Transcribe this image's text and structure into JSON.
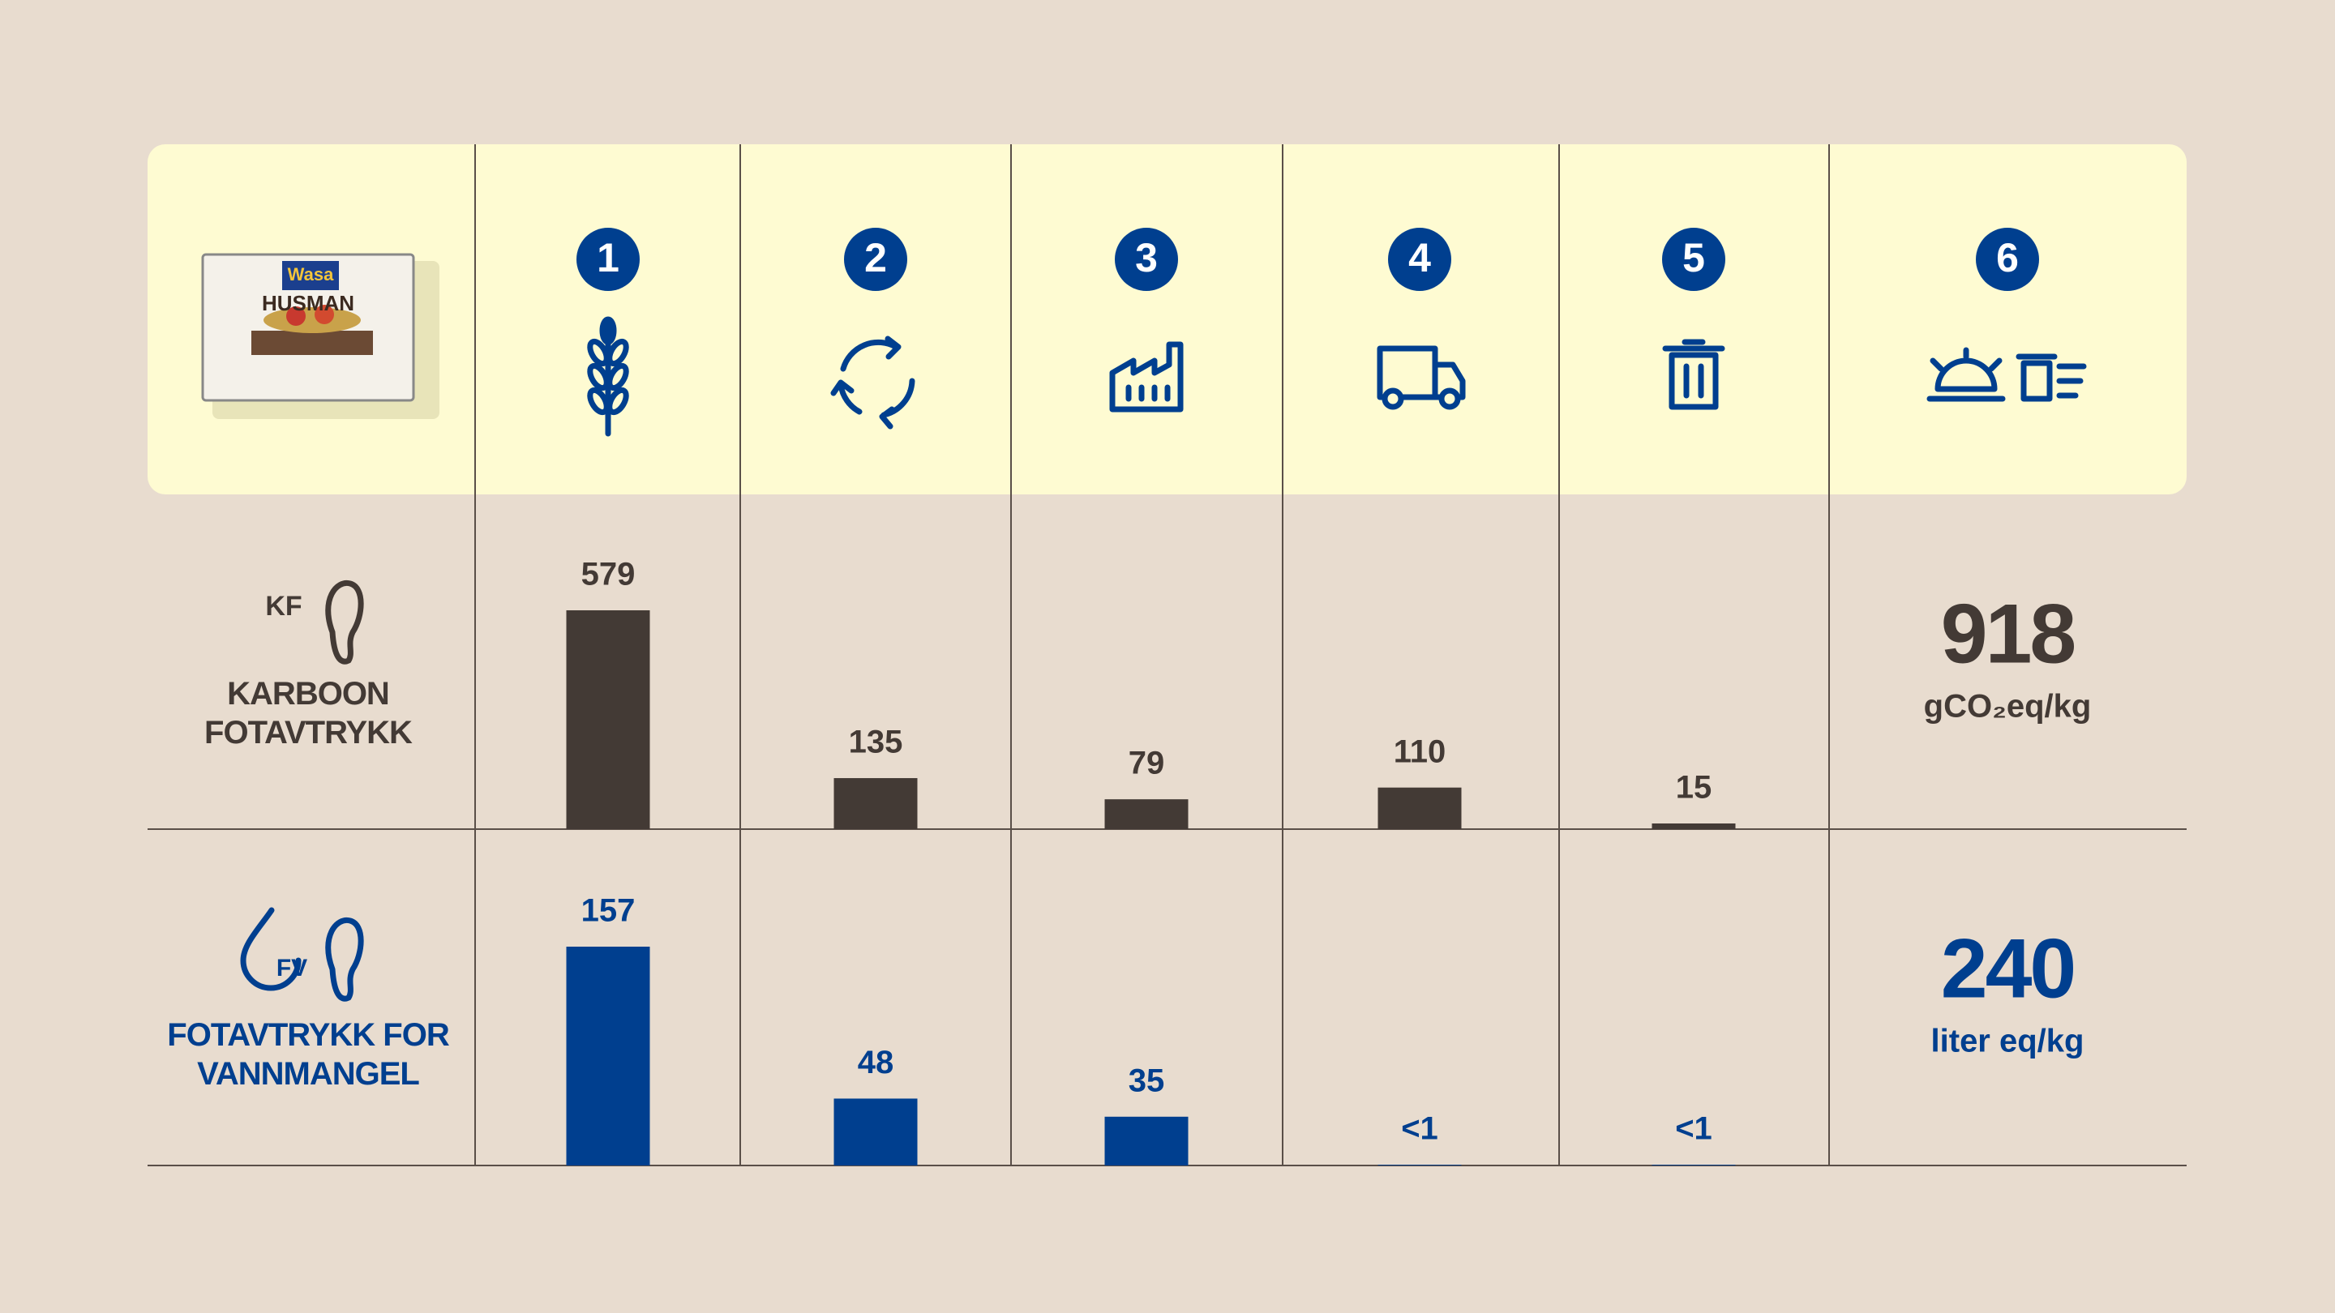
{
  "chart_data": {
    "type": "bar",
    "categories": [
      "1",
      "2",
      "3",
      "4",
      "5"
    ],
    "total_category": "6",
    "product": {
      "brand": "Wasa",
      "name": "HUSMAN"
    },
    "series": [
      {
        "name": "KARBOON FOTAVTRYKK",
        "icon_label": "KF",
        "color": "#433a35",
        "values": [
          579,
          135,
          79,
          110,
          15
        ],
        "total": 918,
        "unit": "gCO₂eq/kg"
      },
      {
        "name": "FOTAVTRYKK FOR VANNMANGEL",
        "icon_label": "FV",
        "color": "#003f8f",
        "values": [
          157,
          48,
          35,
          0.5,
          0.5
        ],
        "value_labels": [
          "157",
          "48",
          "35",
          "<1",
          "<1"
        ],
        "total": 240,
        "unit": "liter eq/kg"
      }
    ]
  }
}
